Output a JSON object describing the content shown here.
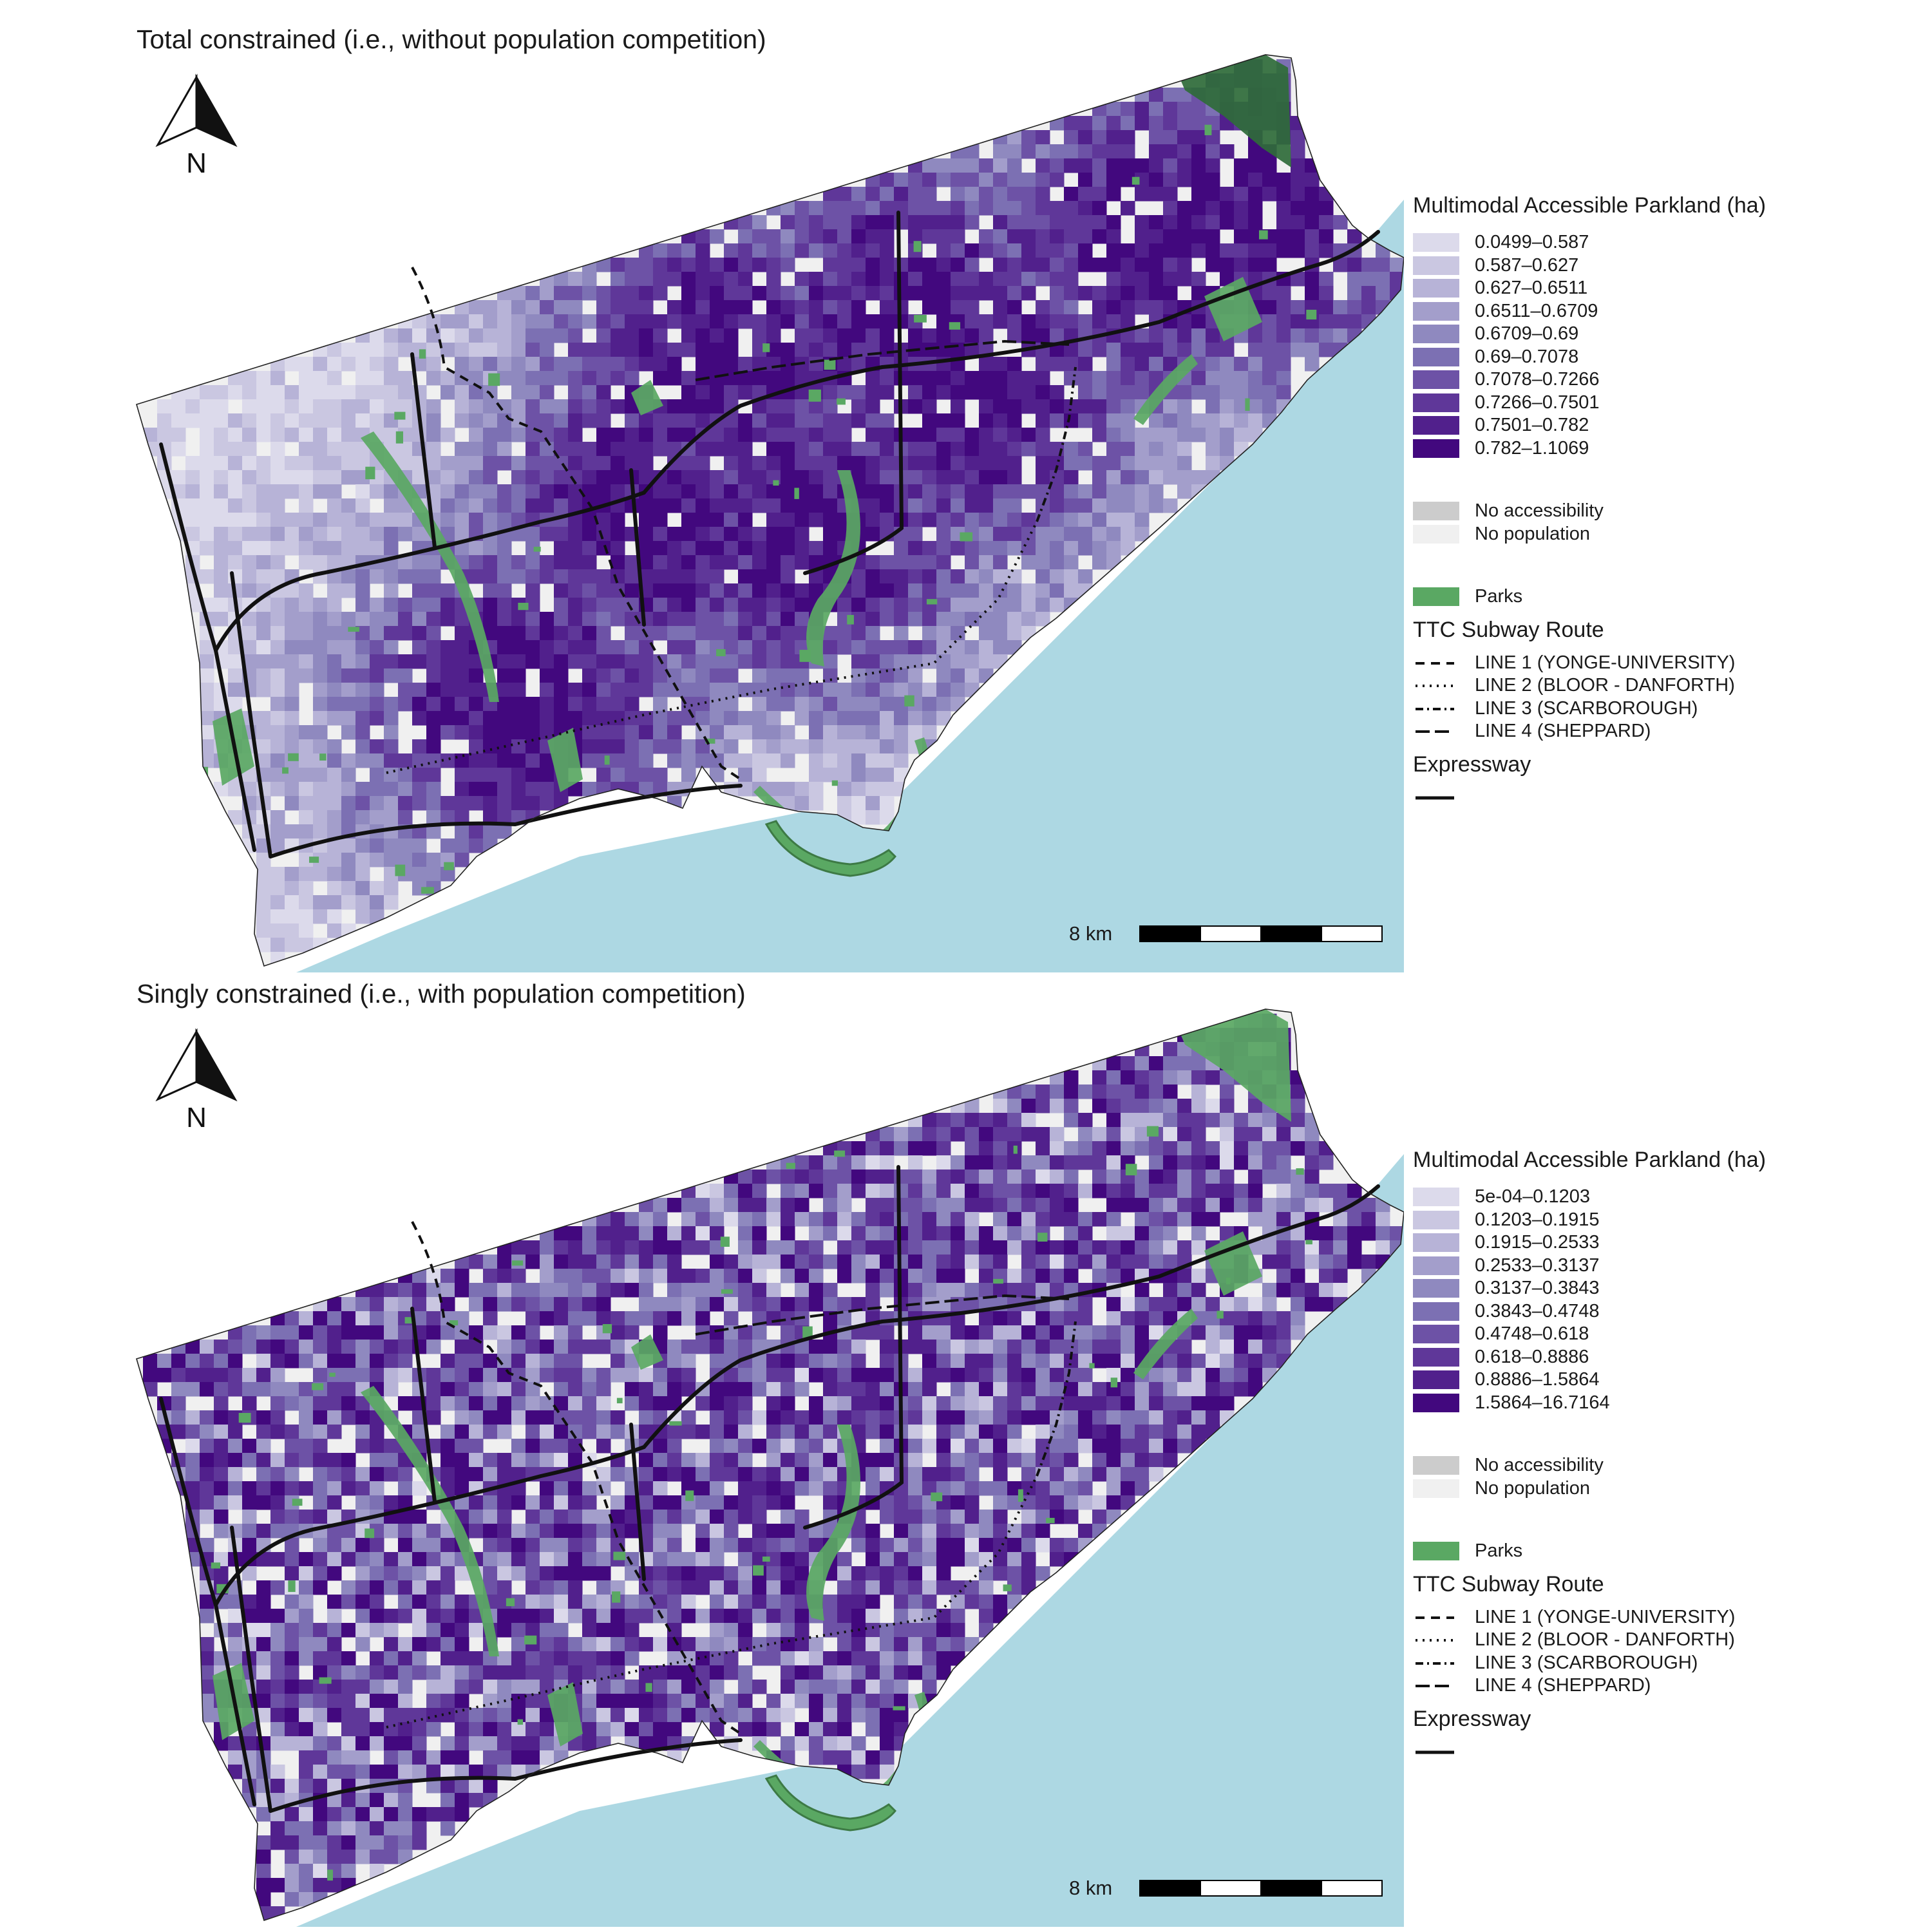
{
  "colors": {
    "water": "#add8e3",
    "park": "#5aa863",
    "park_dark": "#2f6b3a",
    "no_access": "#cccccc",
    "no_population": "#f0f0f0",
    "outline": "#222222"
  },
  "panels": [
    {
      "title": "Total constrained (i.e., without population competition)",
      "north_label": "N",
      "legend": {
        "title": "Multimodal Accessible Parkland (ha)",
        "classes": [
          {
            "label": "0.0499–0.587",
            "color": "#dcdaeb"
          },
          {
            "label": "0.587–0.627",
            "color": "#cac7e1"
          },
          {
            "label": "0.627–0.6511",
            "color": "#b7b3d7"
          },
          {
            "label": "0.6511–0.6709",
            "color": "#a39ecb"
          },
          {
            "label": "0.6709–0.69",
            "color": "#8f89bf"
          },
          {
            "label": "0.69–0.7078",
            "color": "#7c70b3"
          },
          {
            "label": "0.7078–0.7266",
            "color": "#6d52a6"
          },
          {
            "label": "0.7266–0.7501",
            "color": "#5f3799"
          },
          {
            "label": "0.7501–0.782",
            "color": "#51208c"
          },
          {
            "label": "0.782–1.1069",
            "color": "#42087e"
          }
        ],
        "no_access_label": "No accessibility",
        "no_population_label": "No population",
        "parks_label": "Parks",
        "subway_title": "TTC Subway Route",
        "subway_routes": [
          {
            "label": "LINE 1 (YONGE-UNIVERSITY)",
            "dash": "14,10"
          },
          {
            "label": "LINE 2 (BLOOR - DANFORTH)",
            "dash": "3,8"
          },
          {
            "label": "LINE 3 (SCARBOROUGH)",
            "dash": "12,6,3,6"
          },
          {
            "label": "LINE 4 (SHEPPARD)",
            "dash": "22,8"
          }
        ],
        "expressway_title": "Expressway"
      },
      "scale_label": "8 km"
    },
    {
      "title": "Singly constrained (i.e., with population competition)",
      "north_label": "N",
      "legend": {
        "title": "Multimodal Accessible Parkland (ha)",
        "classes": [
          {
            "label": "5e-04–0.1203",
            "color": "#dcdaeb"
          },
          {
            "label": "0.1203–0.1915",
            "color": "#cac7e1"
          },
          {
            "label": "0.1915–0.2533",
            "color": "#b7b3d7"
          },
          {
            "label": "0.2533–0.3137",
            "color": "#a39ecb"
          },
          {
            "label": "0.3137–0.3843",
            "color": "#8f89bf"
          },
          {
            "label": "0.3843–0.4748",
            "color": "#7c70b3"
          },
          {
            "label": "0.4748–0.618",
            "color": "#6d52a6"
          },
          {
            "label": "0.618–0.8886",
            "color": "#5f3799"
          },
          {
            "label": "0.8886–1.5864",
            "color": "#51208c"
          },
          {
            "label": "1.5864–16.7164",
            "color": "#42087e"
          }
        ],
        "no_access_label": "No accessibility",
        "no_population_label": "No population",
        "parks_label": "Parks",
        "subway_title": "TTC Subway Route",
        "subway_routes": [
          {
            "label": "LINE 1 (YONGE-UNIVERSITY)",
            "dash": "14,10"
          },
          {
            "label": "LINE 2 (BLOOR - DANFORTH)",
            "dash": "3,8"
          },
          {
            "label": "LINE 3 (SCARBOROUGH)",
            "dash": "12,6,3,6"
          },
          {
            "label": "LINE 4 (SHEPPARD)",
            "dash": "22,8"
          }
        ],
        "expressway_title": "Expressway"
      },
      "scale_label": "8 km"
    }
  ]
}
